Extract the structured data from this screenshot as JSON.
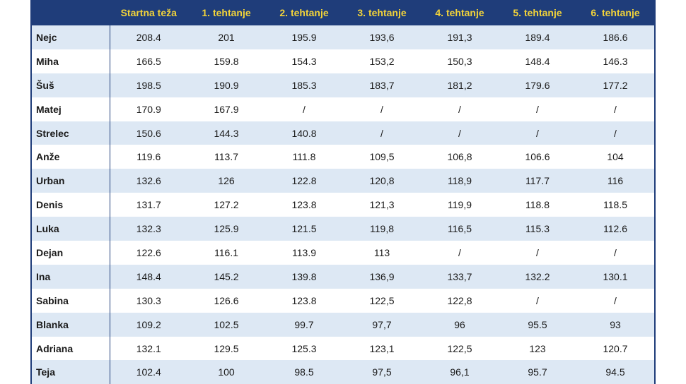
{
  "colors": {
    "header_bg": "#1f3d7a",
    "header_text": "#f2d33a",
    "row_alt": "#dde8f4",
    "row_base": "#ffffff"
  },
  "headers": [
    "",
    "Startna teža",
    "1. tehtanje",
    "2. tehtanje",
    "3. tehtanje",
    "4. tehtanje",
    "5. tehtanje",
    "6. tehtanje"
  ],
  "rows": [
    [
      "Nejc",
      "208.4",
      "201",
      "195.9",
      "193,6",
      "191,3",
      "189.4",
      "186.6"
    ],
    [
      "Miha",
      "166.5",
      "159.8",
      "154.3",
      "153,2",
      "150,3",
      "148.4",
      "146.3"
    ],
    [
      "Šuš",
      "198.5",
      "190.9",
      "185.3",
      "183,7",
      "181,2",
      "179.6",
      "177.2"
    ],
    [
      "Matej",
      "170.9",
      "167.9",
      "/",
      "/",
      "/",
      "/",
      "/"
    ],
    [
      "Strelec",
      "150.6",
      "144.3",
      "140.8",
      "/",
      "/",
      "/",
      "/"
    ],
    [
      "Anže",
      "119.6",
      "113.7",
      "111.8",
      "109,5",
      "106,8",
      "106.6",
      "104"
    ],
    [
      "Urban",
      "132.6",
      "126",
      "122.8",
      "120,8",
      "118,9",
      "117.7",
      "116"
    ],
    [
      "Denis",
      "131.7",
      "127.2",
      "123.8",
      "121,3",
      "119,9",
      "118.8",
      "118.5"
    ],
    [
      "Luka",
      "132.3",
      "125.9",
      "121.5",
      "119,8",
      "116,5",
      "115.3",
      "112.6"
    ],
    [
      "Dejan",
      "122.6",
      "116.1",
      "113.9",
      "113",
      "/",
      "/",
      "/"
    ],
    [
      "Ina",
      "148.4",
      "145.2",
      "139.8",
      "136,9",
      "133,7",
      "132.2",
      "130.1"
    ],
    [
      "Sabina",
      "130.3",
      "126.6",
      "123.8",
      "122,5",
      "122,8",
      "/",
      "/"
    ],
    [
      "Blanka",
      "109.2",
      "102.5",
      "99.7",
      "97,7",
      "96",
      "95.5",
      "93"
    ],
    [
      "Adriana",
      "132.1",
      "129.5",
      "125.3",
      "123,1",
      "122,5",
      "123",
      "120.7"
    ],
    [
      "Teja",
      "102.4",
      "100",
      "98.5",
      "97,5",
      "96,1",
      "95.7",
      "94.5"
    ]
  ]
}
